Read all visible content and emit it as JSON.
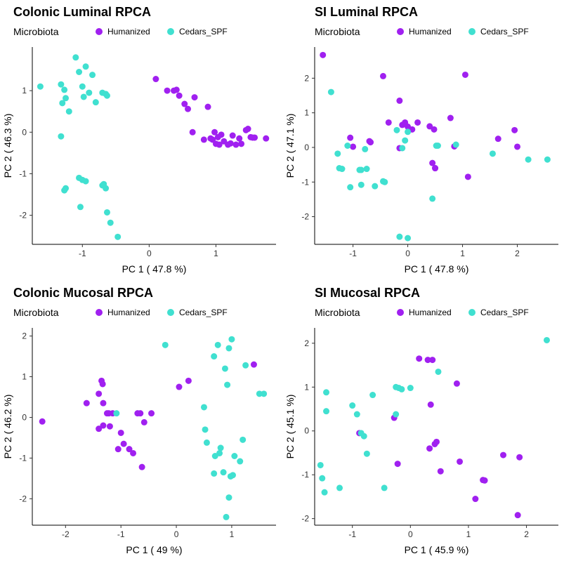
{
  "colors": {
    "Humanized": "#A020F0",
    "Cedars_SPF": "#40E0D0"
  },
  "chart_data": [
    {
      "type": "scatter",
      "title": "Colonic Luminal RPCA",
      "legend_title": "Microbiota",
      "legend_position": "top",
      "xlabel": "PC 1 ( 47.8 %)",
      "ylabel": "PC 2 ( 46.3 %)",
      "xlim": [
        -1.75,
        1.9
      ],
      "ylim": [
        -2.7,
        2.05
      ],
      "xticks": [
        -1,
        0,
        1
      ],
      "yticks": [
        -2,
        -1,
        0,
        1
      ],
      "series": [
        {
          "name": "Humanized",
          "x": [
            0.1,
            0.27,
            0.37,
            0.41,
            0.45,
            0.53,
            0.58,
            0.68,
            0.88,
            0.65,
            0.82,
            0.92,
            0.95,
            1.0,
            1.05,
            1.12,
            1.18,
            1.22,
            1.25,
            1.3,
            1.35,
            1.38,
            1.45,
            1.48,
            1.52,
            1.55,
            1.58,
            1.75,
            0.98,
            1.03,
            1.08
          ],
          "y": [
            1.28,
            1.0,
            1.0,
            1.02,
            0.88,
            0.68,
            0.56,
            0.84,
            0.61,
            0.0,
            -0.18,
            -0.15,
            -0.18,
            -0.28,
            -0.3,
            -0.22,
            -0.3,
            -0.27,
            -0.08,
            -0.3,
            -0.15,
            -0.28,
            0.05,
            0.08,
            -0.12,
            -0.13,
            -0.13,
            -0.15,
            0.0,
            -0.12,
            -0.06
          ]
        },
        {
          "name": "Cedars_SPF",
          "x": [
            -1.63,
            -1.32,
            -1.27,
            -1.3,
            -1.25,
            -1.2,
            -1.1,
            -1.05,
            -1.0,
            -0.98,
            -0.95,
            -0.9,
            -0.85,
            -0.8,
            -0.7,
            -0.65,
            -0.63,
            -1.32,
            -1.27,
            -1.25,
            -1.05,
            -1.0,
            -0.95,
            -0.7,
            -0.68,
            -0.65,
            -0.63,
            -0.58,
            -0.47,
            -1.03
          ],
          "y": [
            1.1,
            1.15,
            1.02,
            0.7,
            0.82,
            0.5,
            1.8,
            1.45,
            1.1,
            0.85,
            1.58,
            0.95,
            1.38,
            0.72,
            0.95,
            0.92,
            0.88,
            -0.1,
            -1.4,
            -1.35,
            -1.1,
            -1.15,
            -1.18,
            -1.28,
            -1.25,
            -1.35,
            -1.93,
            -2.18,
            -2.52,
            -1.8
          ]
        }
      ]
    },
    {
      "type": "scatter",
      "title": "SI Luminal RPCA",
      "legend_title": "Microbiota",
      "legend_position": "top",
      "xlabel": "PC 1 ( 47.8 %)",
      "ylabel": "PC 2 ( 47.1 %)",
      "xlim": [
        -1.7,
        2.75
      ],
      "ylim": [
        -2.8,
        2.9
      ],
      "xticks": [
        -1,
        0,
        1,
        2
      ],
      "yticks": [
        -2,
        -1,
        0,
        1,
        2
      ],
      "series": [
        {
          "name": "Humanized",
          "x": [
            -1.55,
            -0.45,
            -0.15,
            -1.05,
            -1.0,
            -0.7,
            -0.68,
            -0.35,
            -0.1,
            -0.05,
            0.0,
            0.08,
            0.18,
            0.4,
            0.45,
            0.5,
            0.48,
            0.5,
            0.78,
            0.85,
            1.05,
            1.1,
            1.65,
            1.95,
            2.0,
            -0.15
          ],
          "y": [
            2.67,
            2.06,
            1.35,
            0.28,
            0.02,
            0.18,
            0.15,
            0.72,
            0.65,
            0.72,
            0.6,
            0.52,
            0.72,
            0.61,
            -0.45,
            -0.6,
            0.52,
            -0.6,
            0.85,
            0.03,
            2.1,
            -0.85,
            0.25,
            0.5,
            0.02,
            -0.02
          ]
        },
        {
          "name": "Cedars_SPF",
          "x": [
            -1.4,
            -1.28,
            -1.25,
            -1.2,
            -1.1,
            -1.05,
            -0.85,
            -0.78,
            -0.75,
            -0.85,
            -0.6,
            -0.45,
            -0.42,
            -0.2,
            -0.15,
            -0.1,
            -0.05,
            0.0,
            0.0,
            0.45,
            0.55,
            0.52,
            0.88,
            1.55,
            2.2,
            2.55,
            -0.88
          ],
          "y": [
            1.6,
            -0.18,
            -0.6,
            -0.62,
            0.05,
            -1.15,
            -0.65,
            -0.05,
            -0.62,
            -1.08,
            -1.12,
            -0.98,
            -1.0,
            0.5,
            -2.58,
            -0.02,
            0.2,
            0.45,
            -2.62,
            -1.48,
            0.05,
            0.05,
            0.08,
            -0.18,
            -0.35,
            -0.35,
            -0.65
          ]
        }
      ]
    },
    {
      "type": "scatter",
      "title": "Colonic Mucosal RPCA",
      "legend_title": "Microbiota",
      "legend_position": "top",
      "xlabel": "PC 1 ( 49 %)",
      "ylabel": "PC 2 ( 46.2 %)",
      "xlim": [
        -2.6,
        1.8
      ],
      "ylim": [
        -2.65,
        2.2
      ],
      "xticks": [
        -2,
        -1,
        0,
        1
      ],
      "yticks": [
        -2,
        -1,
        0,
        1,
        2
      ],
      "series": [
        {
          "name": "Humanized",
          "x": [
            -2.42,
            -1.62,
            -1.4,
            -1.35,
            -1.33,
            -1.32,
            -1.25,
            -1.2,
            -1.15,
            -1.4,
            -1.32,
            -1.05,
            -1.0,
            -0.95,
            -0.85,
            -0.78,
            -0.7,
            -0.65,
            -0.62,
            -0.58,
            -0.45,
            0.05,
            0.22,
            1.4,
            -1.22
          ],
          "y": [
            -0.1,
            0.35,
            0.58,
            0.9,
            0.82,
            0.35,
            0.1,
            -0.22,
            0.1,
            -0.28,
            -0.2,
            -0.78,
            -0.38,
            -0.65,
            -0.78,
            -0.88,
            0.1,
            0.1,
            -1.22,
            -0.12,
            0.1,
            0.75,
            0.9,
            1.3,
            0.1
          ]
        },
        {
          "name": "Cedars_SPF",
          "x": [
            -0.2,
            -1.08,
            0.5,
            0.52,
            0.55,
            0.68,
            0.7,
            0.75,
            0.78,
            0.8,
            0.85,
            0.88,
            0.9,
            0.92,
            0.95,
            0.98,
            1.0,
            1.02,
            1.05,
            1.15,
            1.2,
            1.25,
            1.5,
            1.58,
            0.68,
            0.95
          ],
          "y": [
            1.78,
            0.1,
            0.25,
            -0.3,
            -0.62,
            1.5,
            -0.95,
            1.78,
            -0.88,
            -0.75,
            -1.35,
            1.2,
            -2.45,
            0.8,
            1.7,
            -1.45,
            1.92,
            -1.42,
            -0.95,
            -1.08,
            -0.55,
            1.28,
            0.58,
            0.58,
            -1.38,
            -1.97
          ]
        }
      ]
    },
    {
      "type": "scatter",
      "title": "SI Mucosal RPCA",
      "legend_title": "Microbiota",
      "legend_position": "top",
      "xlabel": "PC 1 ( 45.9 %)",
      "ylabel": "PC 2 ( 45.1 %)",
      "xlim": [
        -1.65,
        2.55
      ],
      "ylim": [
        -2.15,
        2.35
      ],
      "xticks": [
        -1,
        0,
        1,
        2
      ],
      "yticks": [
        -2,
        -1,
        0,
        1,
        2
      ],
      "series": [
        {
          "name": "Humanized",
          "x": [
            0.15,
            0.3,
            0.38,
            0.8,
            0.35,
            -0.28,
            -0.22,
            -0.88,
            0.33,
            0.42,
            0.45,
            0.52,
            0.85,
            1.12,
            1.25,
            1.28,
            1.6,
            1.85,
            1.88
          ],
          "y": [
            1.65,
            1.62,
            1.62,
            1.08,
            0.6,
            0.3,
            -0.75,
            -0.05,
            -0.4,
            -0.3,
            -0.25,
            -0.92,
            -0.7,
            -1.55,
            -1.12,
            -1.13,
            -0.55,
            -1.92,
            -0.6
          ]
        },
        {
          "name": "Cedars_SPF",
          "x": [
            -1.55,
            -1.52,
            -1.48,
            -1.45,
            -1.45,
            -1.22,
            -1.0,
            -0.92,
            -0.85,
            -0.8,
            -0.75,
            -0.65,
            -0.45,
            -0.25,
            -0.2,
            -0.15,
            0.0,
            0.48,
            2.35,
            -0.25
          ],
          "y": [
            -0.78,
            -1.08,
            -1.4,
            0.88,
            0.45,
            -1.3,
            0.58,
            0.38,
            -0.05,
            -0.12,
            -0.52,
            0.82,
            -1.3,
            1.0,
            0.98,
            0.95,
            0.98,
            1.35,
            2.07,
            0.38
          ]
        }
      ]
    }
  ]
}
